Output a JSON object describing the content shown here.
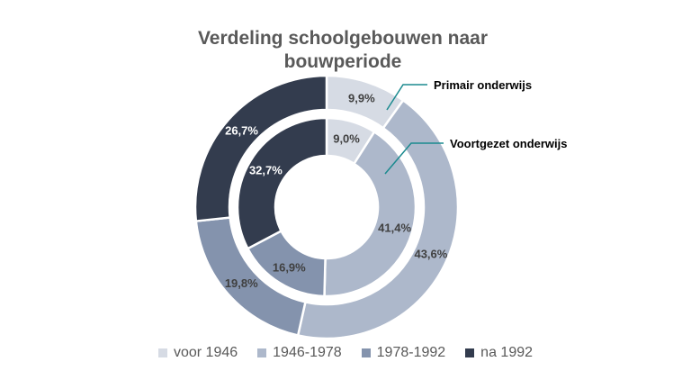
{
  "chart_data": {
    "type": "pie",
    "variant": "doughnut",
    "title": "Verdeling schoolgebouwen naar bouwperiode",
    "title_lines": [
      "Verdeling schoolgebouwen naar",
      "bouwperiode"
    ],
    "categories": [
      "voor 1946",
      "1946-1978",
      "1978-1992",
      "na 1992"
    ],
    "colors": [
      "#d6dbe4",
      "#adb8cb",
      "#8493ad",
      "#333c4e"
    ],
    "series": [
      {
        "name": "Primair onderwijs",
        "ring": "outer",
        "values": [
          9.9,
          43.6,
          19.8,
          26.7
        ],
        "labels": [
          "9,9%",
          "43,6%",
          "19,8%",
          "26,7%"
        ]
      },
      {
        "name": "Voortgezet onderwijs",
        "ring": "inner",
        "values": [
          9.0,
          41.4,
          16.9,
          32.7
        ],
        "labels": [
          "9,0%",
          "41,4%",
          "16,9%",
          "32,7%"
        ]
      }
    ],
    "legend_position": "bottom"
  }
}
